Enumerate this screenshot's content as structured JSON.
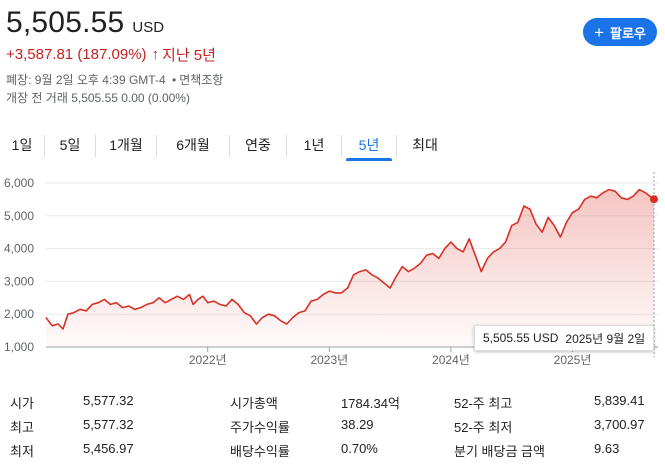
{
  "header": {
    "price": "5,505.55",
    "currency": "USD",
    "change": "+3,587.81 (187.09%)",
    "change_arrow": "↑",
    "period_label": "지난 5년",
    "close_label": "폐장:",
    "close_time": "9월 2일 오후 4:39 GMT-4",
    "disclaimer": "면책조항",
    "premarket": "개장 전 거래 5,505.55 0.00 (0.00%)",
    "follow_label": "팔로우"
  },
  "tabs": [
    {
      "label": "1일",
      "active": false
    },
    {
      "label": "5일",
      "active": false
    },
    {
      "label": "1개월",
      "active": false
    },
    {
      "label": "6개월",
      "active": false
    },
    {
      "label": "연중",
      "active": false
    },
    {
      "label": "1년",
      "active": false
    },
    {
      "label": "5년",
      "active": true
    },
    {
      "label": "최대",
      "active": false
    }
  ],
  "tooltip": {
    "price": "5,505.55 USD",
    "date": "2025년 9월 2일"
  },
  "chart_data": {
    "type": "area",
    "title": "",
    "xlabel": "",
    "ylabel": "",
    "ylim": [
      1000,
      6000
    ],
    "yticks": [
      "1,000",
      "2,000",
      "3,000",
      "4,000",
      "5,000",
      "6,000"
    ],
    "xticks": [
      {
        "label": "2022년",
        "x": 2022
      },
      {
        "label": "2023년",
        "x": 2023
      },
      {
        "label": "2024년",
        "x": 2024
      },
      {
        "label": "2025년",
        "x": 2025
      }
    ],
    "xlim": [
      2020.67,
      2025.67
    ],
    "grid": true,
    "color": "#d93025",
    "series": [
      {
        "x": [
          2020.67,
          2020.72,
          2020.77,
          2020.81,
          2020.85,
          2020.9,
          2020.95,
          2021.0,
          2021.05,
          2021.1,
          2021.15,
          2021.2,
          2021.25,
          2021.3,
          2021.35,
          2021.4,
          2021.45,
          2021.5,
          2021.55,
          2021.6,
          2021.65,
          2021.7,
          2021.75,
          2021.8,
          2021.85,
          2021.88,
          2021.92,
          2021.96,
          2022.0,
          2022.05,
          2022.1,
          2022.15,
          2022.2,
          2022.25,
          2022.3,
          2022.35,
          2022.4,
          2022.45,
          2022.5,
          2022.55,
          2022.6,
          2022.65,
          2022.7,
          2022.75,
          2022.8,
          2022.85,
          2022.9,
          2022.95,
          2023.0,
          2023.05,
          2023.1,
          2023.15,
          2023.2,
          2023.25,
          2023.3,
          2023.35,
          2023.4,
          2023.45,
          2023.5,
          2023.55,
          2023.6,
          2023.65,
          2023.7,
          2023.75,
          2023.8,
          2023.85,
          2023.9,
          2023.95,
          2024.0,
          2024.05,
          2024.1,
          2024.15,
          2024.2,
          2024.25,
          2024.3,
          2024.35,
          2024.4,
          2024.45,
          2024.5,
          2024.55,
          2024.6,
          2024.65,
          2024.7,
          2024.75,
          2024.8,
          2024.85,
          2024.9,
          2024.95,
          2025.0,
          2025.05,
          2025.1,
          2025.15,
          2025.2,
          2025.25,
          2025.3,
          2025.35,
          2025.4,
          2025.45,
          2025.5,
          2025.55,
          2025.6,
          2025.65,
          2025.67
        ],
        "y": [
          1900,
          1650,
          1700,
          1550,
          2000,
          2050,
          2150,
          2100,
          2300,
          2350,
          2450,
          2300,
          2350,
          2200,
          2250,
          2150,
          2200,
          2300,
          2350,
          2500,
          2350,
          2450,
          2550,
          2450,
          2600,
          2300,
          2450,
          2550,
          2350,
          2400,
          2300,
          2250,
          2450,
          2300,
          2050,
          1950,
          1700,
          1900,
          2000,
          1950,
          1800,
          1700,
          1900,
          2050,
          2100,
          2400,
          2450,
          2600,
          2700,
          2650,
          2650,
          2800,
          3200,
          3300,
          3350,
          3200,
          3100,
          2950,
          2800,
          3150,
          3450,
          3300,
          3400,
          3550,
          3800,
          3850,
          3700,
          4000,
          4200,
          4000,
          3900,
          4300,
          3800,
          3300,
          3700,
          3900,
          4000,
          4200,
          4700,
          4800,
          5300,
          5200,
          4750,
          4500,
          4950,
          4700,
          4350,
          4800,
          5100,
          5200,
          5500,
          5600,
          5550,
          5700,
          5800,
          5750,
          5550,
          5500,
          5600,
          5800,
          5700,
          5550,
          5505.55
        ]
      }
    ]
  },
  "stats": [
    [
      {
        "label": "시가",
        "value": "5,577.32"
      },
      {
        "label": "시가총액",
        "value": "1784.34억"
      },
      {
        "label": "52-주 최고",
        "value": "5,839.41"
      }
    ],
    [
      {
        "label": "최고",
        "value": "5,577.32"
      },
      {
        "label": "주가수익률",
        "value": "38.29"
      },
      {
        "label": "52-주 최저",
        "value": "3,700.97"
      }
    ],
    [
      {
        "label": "최저",
        "value": "5,456.97"
      },
      {
        "label": "배당수익률",
        "value": "0.70%"
      },
      {
        "label": "분기 배당금 금액",
        "value": "9.63"
      }
    ]
  ]
}
